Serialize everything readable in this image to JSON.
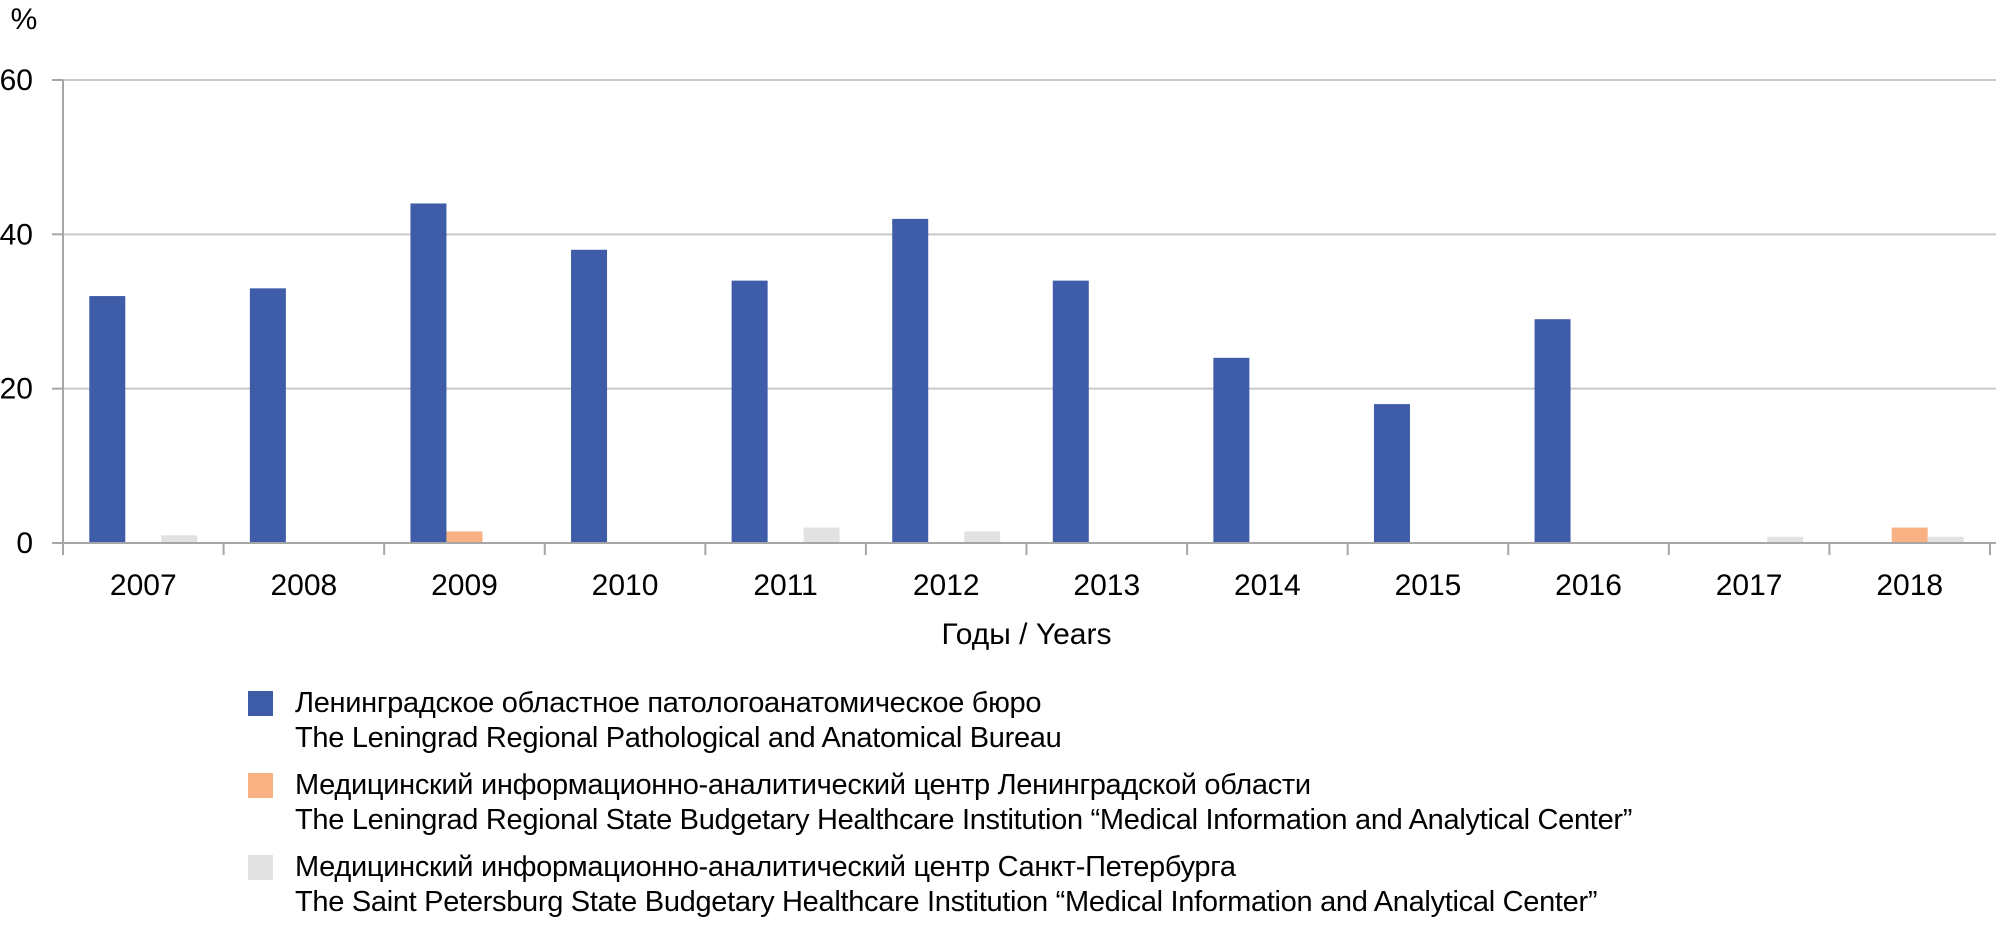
{
  "chart_data": {
    "type": "bar",
    "title": "",
    "ylabel": "%",
    "xlabel": "Годы / Years",
    "ylim": [
      0,
      60
    ],
    "yticks": [
      0,
      20,
      40,
      60
    ],
    "grid": true,
    "legend_position": "bottom-left",
    "categories": [
      "2007",
      "2008",
      "2009",
      "2010",
      "2011",
      "2012",
      "2013",
      "2014",
      "2015",
      "2016",
      "2017",
      "2018"
    ],
    "series": [
      {
        "name_ru": "Ленинградское областное патологоанатомическое бюро",
        "name_en": "The Leningrad Regional Pathological and Anatomical Bureau",
        "color": "#3e5ca8",
        "values": [
          32,
          33,
          44,
          38,
          34,
          42,
          34,
          24,
          18,
          29,
          0,
          0
        ]
      },
      {
        "name_ru": "Медицинский информационно-аналитический центр Ленинградской области",
        "name_en": "The Leningrad Regional State Budgetary Healthcare Institution “Medical Information and Analytical Center”",
        "color": "#f7b183",
        "values": [
          0,
          0,
          1.5,
          0,
          0,
          0,
          0,
          0,
          0,
          0,
          0,
          2
        ]
      },
      {
        "name_ru": "Медицинский информационно-аналитический центр Санкт-Петербурга",
        "name_en": "The Saint Petersburg State Budgetary Healthcare Institution “Medical Information and Analytical Center”",
        "color": "#e2e2e2",
        "values": [
          1,
          0,
          0,
          0,
          2,
          1.5,
          0,
          0,
          0,
          0,
          0.8,
          0.8
        ]
      }
    ],
    "colors": {
      "gridline": "#c9c9c9",
      "axis": "#a6a6a6",
      "text": "#000000"
    }
  }
}
